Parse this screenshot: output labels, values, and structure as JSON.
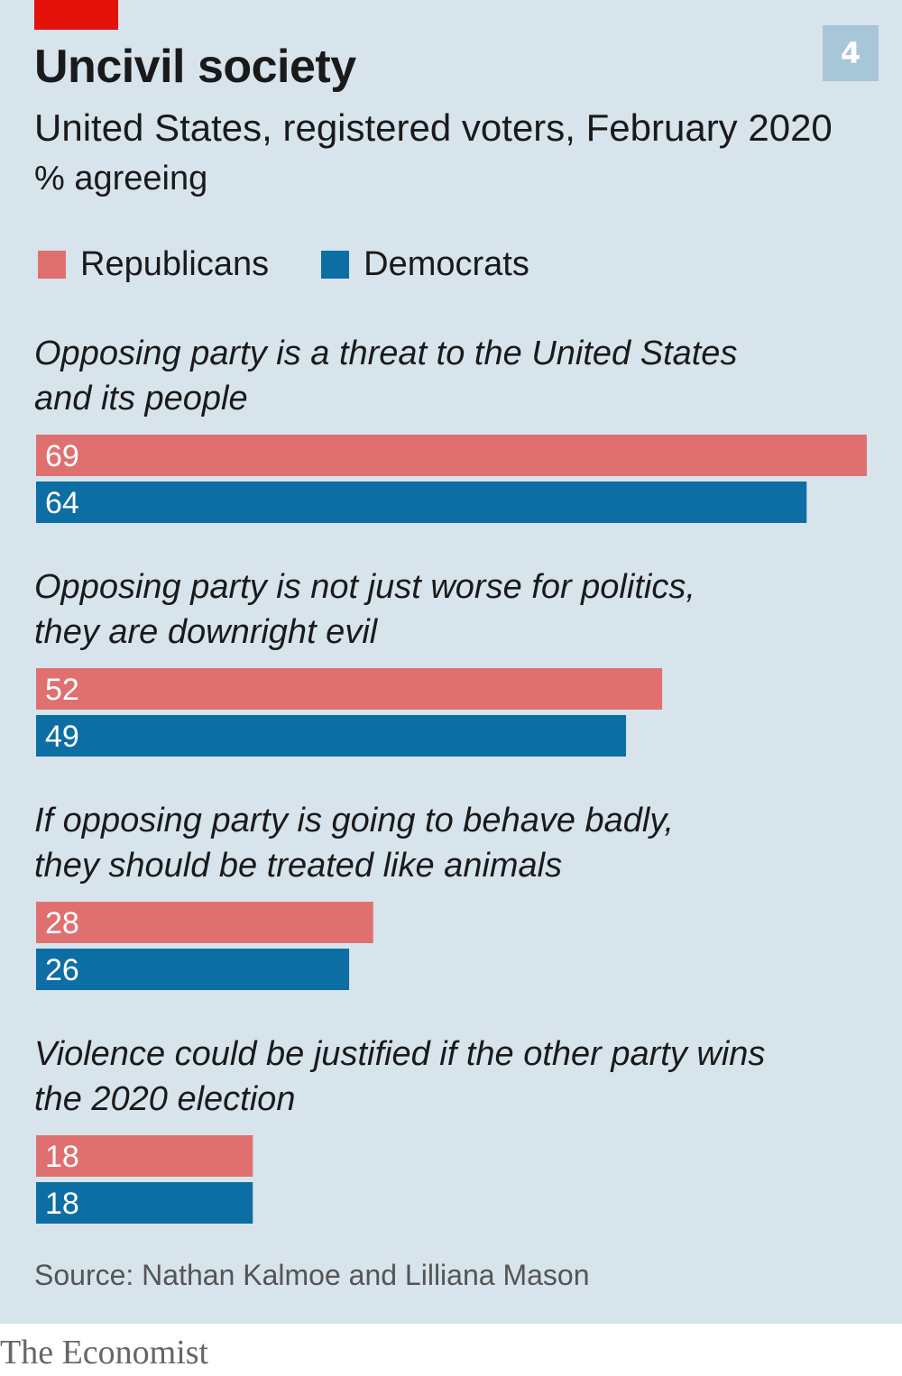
{
  "header": {
    "chart_number": "4",
    "title": "Uncivil society",
    "subtitle": "United States, registered voters, February 2020",
    "unit": "% agreeing"
  },
  "legend": {
    "republicans": "Republicans",
    "democrats": "Democrats"
  },
  "colors": {
    "republicans": "#e07070",
    "democrats": "#0d6ea4",
    "accent_red": "#e3120b",
    "background": "#d7e4ec"
  },
  "footer": {
    "source": "Source: Nathan Kalmoe and Lilliana Mason",
    "brand": "The Economist"
  },
  "chart_data": {
    "type": "bar",
    "orientation": "horizontal",
    "title": "Uncivil society",
    "subtitle": "United States, registered voters, February 2020",
    "unit": "% agreeing",
    "categories": [
      [
        "Opposing party is a threat to the United States",
        "and its people"
      ],
      [
        "Opposing party is not just worse for politics,",
        "they are downright evil"
      ],
      [
        "If opposing party is going to behave badly,",
        "they should be treated like animals"
      ],
      [
        "Violence could be justified if the other party wins",
        "the 2020 election"
      ]
    ],
    "series": [
      {
        "name": "Republicans",
        "values": [
          69,
          52,
          28,
          18
        ]
      },
      {
        "name": "Democrats",
        "values": [
          64,
          49,
          26,
          18
        ]
      }
    ],
    "xlim": [
      0,
      69
    ],
    "grid": false,
    "legend_position": "top-left"
  }
}
